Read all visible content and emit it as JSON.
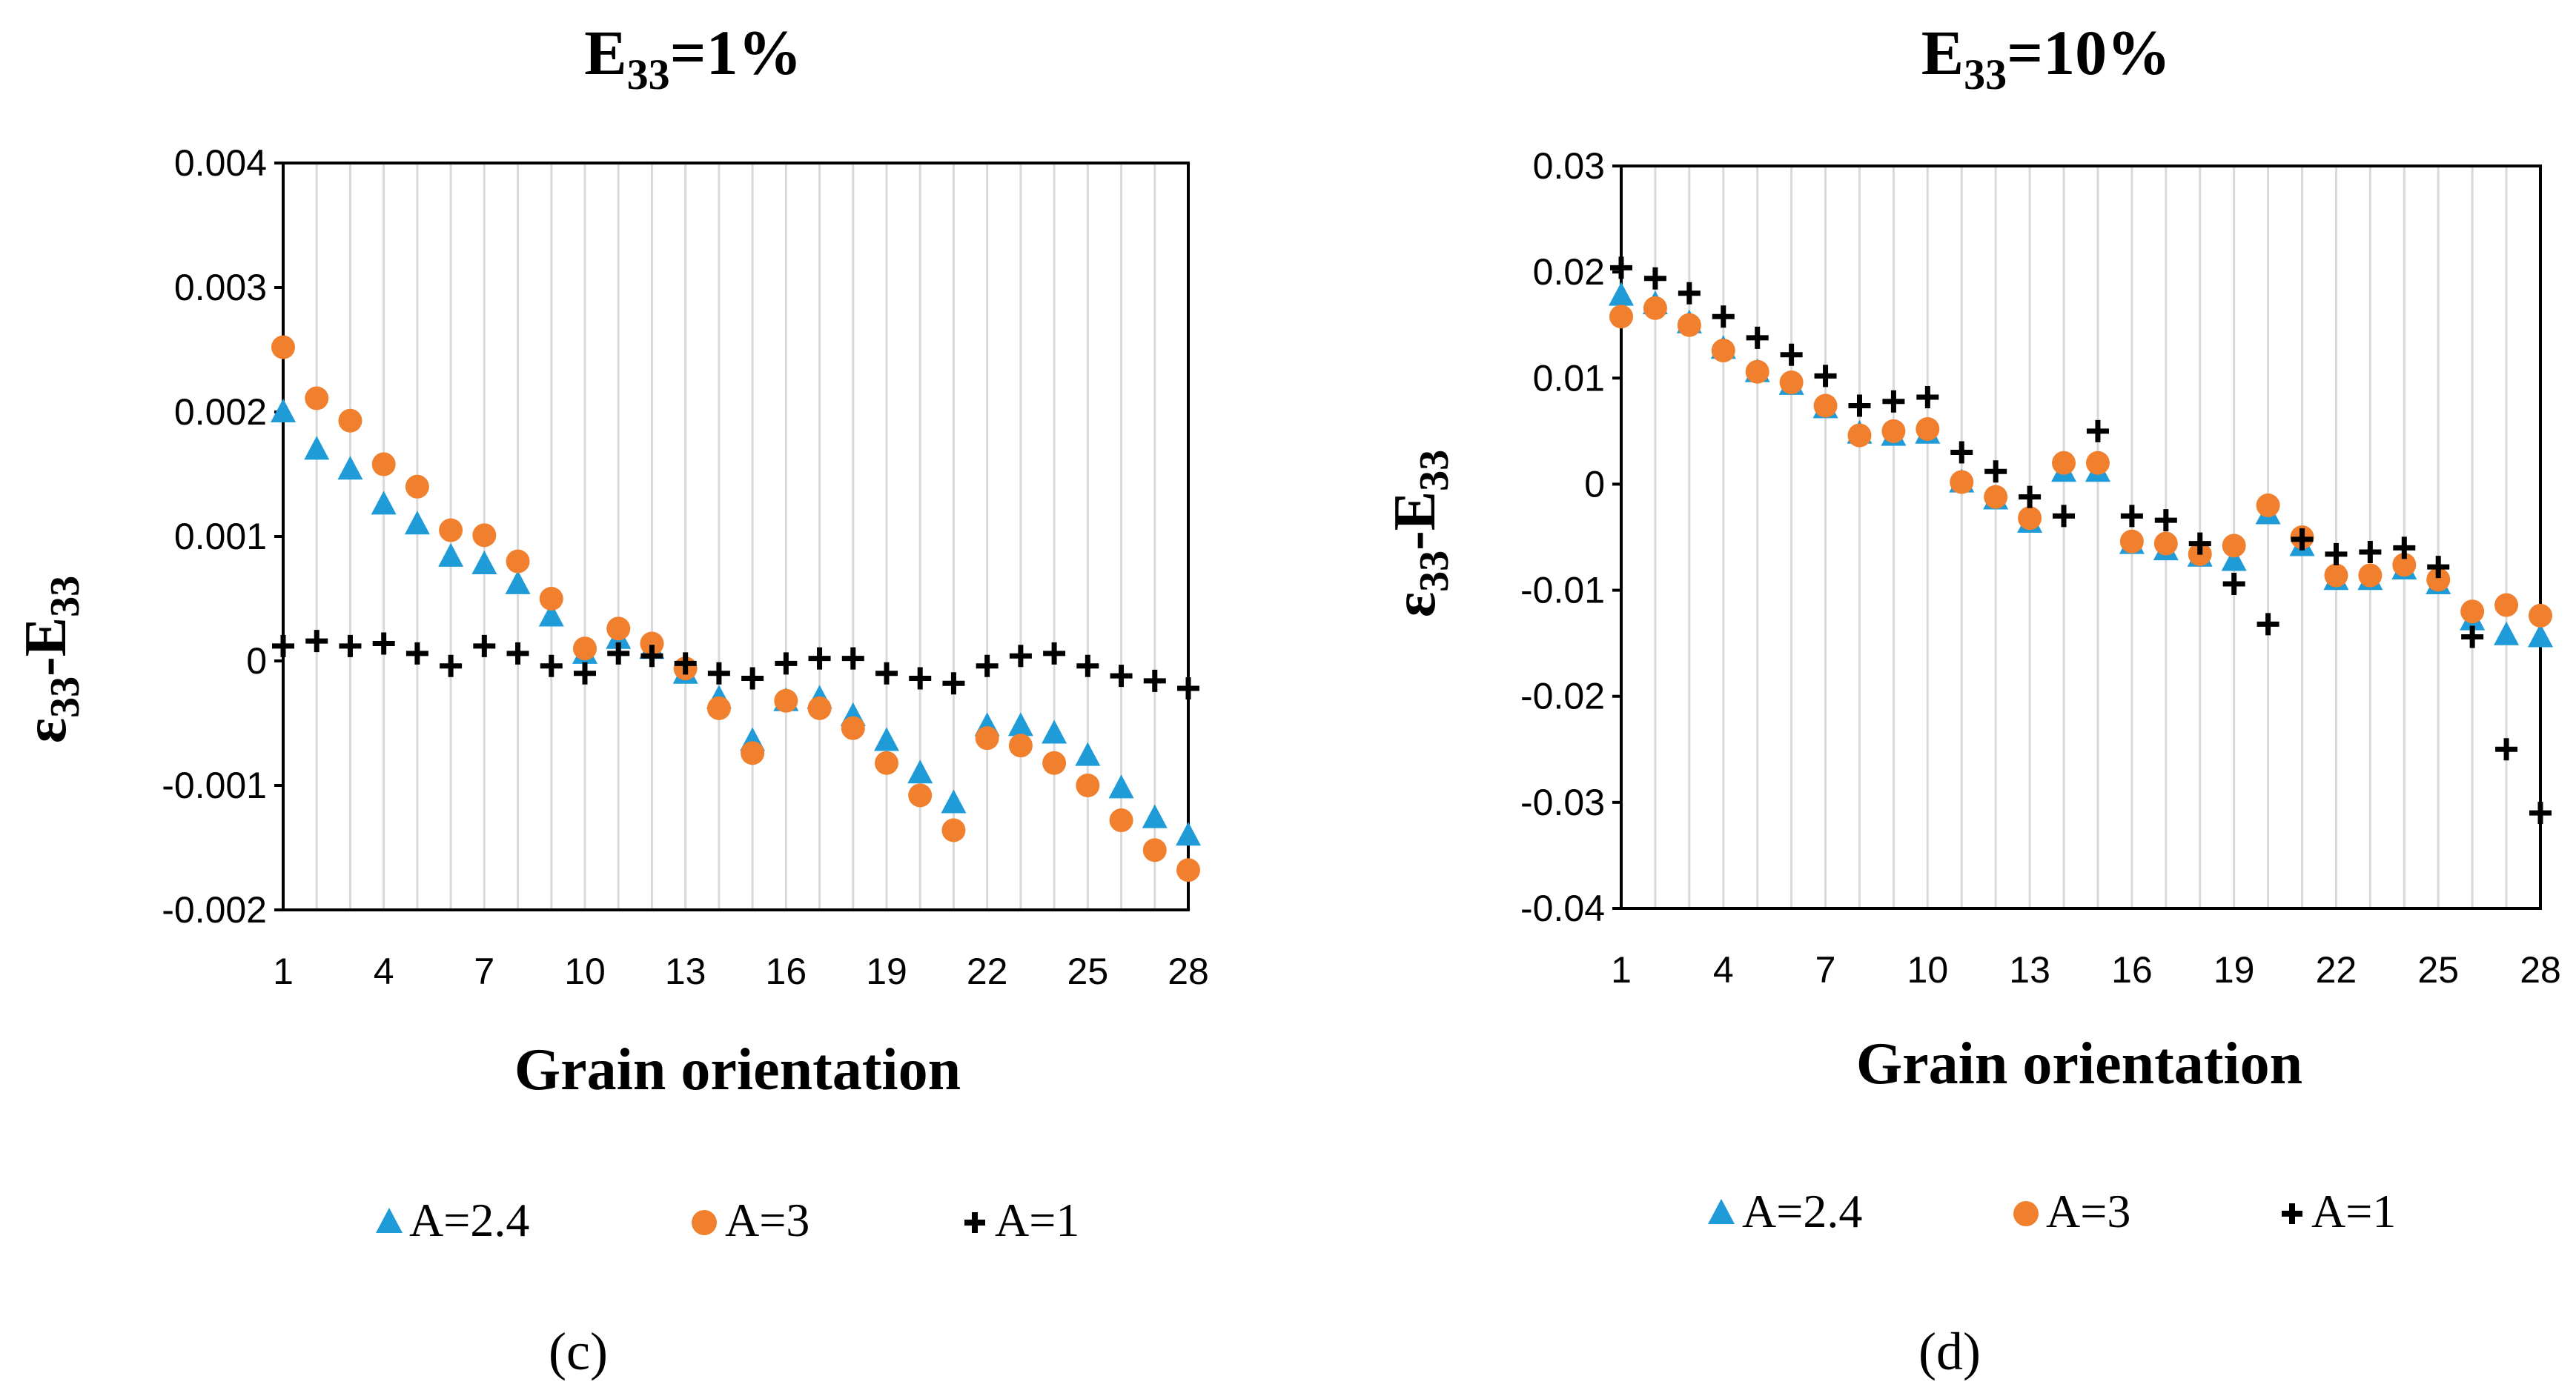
{
  "colors": {
    "a24": "#1f9bd7",
    "a3": "#f07f2e",
    "a1": "#000000",
    "grid": "#d9d9d9",
    "axis": "#000000"
  },
  "chart_data": [
    {
      "type": "scatter",
      "panel": "c",
      "title_main": "E",
      "title_sub": "33",
      "title_rest": "=1%",
      "xlabel": "Grain orientation",
      "ylabel_main": "ε",
      "ylabel_sub1": "33",
      "ylabel_mid": "-E",
      "ylabel_sub2": "33",
      "caption": "(c)",
      "xlim": [
        1,
        28
      ],
      "ylim": [
        -0.002,
        0.004
      ],
      "xticks": [
        1,
        4,
        7,
        10,
        13,
        16,
        19,
        22,
        25,
        28
      ],
      "yticks": [
        -0.002,
        -0.001,
        0,
        0.001,
        0.002,
        0.003,
        0.004
      ],
      "ytick_labels": [
        "-0.002",
        "-0.001",
        "0",
        "0.001",
        "0.002",
        "0.003",
        "0.004"
      ],
      "x": [
        1,
        2,
        3,
        4,
        5,
        6,
        7,
        8,
        9,
        10,
        11,
        12,
        13,
        14,
        15,
        16,
        17,
        18,
        19,
        20,
        21,
        22,
        23,
        24,
        25,
        26,
        27,
        28
      ],
      "series": [
        {
          "name": "A=2.4",
          "marker": "triangle",
          "color_key": "a24",
          "values": [
            0.002,
            0.0017,
            0.00154,
            0.00126,
            0.0011,
            0.00084,
            0.00078,
            0.00062,
            0.00036,
            6e-05,
            0.00018,
            0.0001,
            -0.0001,
            -0.0003,
            -0.00064,
            -0.00032,
            -0.0003,
            -0.00044,
            -0.00064,
            -0.0009,
            -0.00114,
            -0.00052,
            -0.00052,
            -0.00058,
            -0.00076,
            -0.00102,
            -0.00126,
            -0.0014
          ]
        },
        {
          "name": "A=3",
          "marker": "circle",
          "color_key": "a3",
          "values": [
            0.00252,
            0.00211,
            0.00193,
            0.00158,
            0.0014,
            0.00105,
            0.00101,
            0.0008,
            0.0005,
            0.0001,
            0.00026,
            0.00014,
            -6e-05,
            -0.00038,
            -0.00074,
            -0.00032,
            -0.00038,
            -0.00054,
            -0.00082,
            -0.00108,
            -0.00136,
            -0.00062,
            -0.00068,
            -0.00082,
            -0.001,
            -0.00128,
            -0.00152,
            -0.00168
          ]
        },
        {
          "name": "A=1",
          "marker": "plus",
          "color_key": "a1",
          "values": [
            0.00012,
            0.00016,
            0.00012,
            0.00014,
            6e-05,
            -4e-05,
            0.00012,
            6e-05,
            -4e-05,
            -0.0001,
            6e-05,
            4e-05,
            -2e-05,
            -0.0001,
            -0.00014,
            -2e-05,
            2e-05,
            2e-05,
            -0.0001,
            -0.00014,
            -0.00018,
            -4e-05,
            4e-05,
            6e-05,
            -4e-05,
            -0.00012,
            -0.00016,
            -0.00022
          ]
        }
      ],
      "legend": [
        "A=2.4",
        "A=3",
        "A=1"
      ]
    },
    {
      "type": "scatter",
      "panel": "d",
      "title_main": "E",
      "title_sub": "33",
      "title_rest": "=10%",
      "xlabel": "Grain orientation",
      "ylabel_main": "ε",
      "ylabel_sub1": "33",
      "ylabel_mid": "-E",
      "ylabel_sub2": "33",
      "caption": "(d)",
      "xlim": [
        1,
        28
      ],
      "ylim": [
        -0.04,
        0.03
      ],
      "xticks": [
        1,
        4,
        7,
        10,
        13,
        16,
        19,
        22,
        25,
        28
      ],
      "yticks": [
        -0.04,
        -0.03,
        -0.02,
        -0.01,
        0,
        0.01,
        0.02,
        0.03
      ],
      "ytick_labels": [
        "-0.04",
        "-0.03",
        "-0.02",
        "-0.01",
        "0",
        "0.01",
        "0.02",
        "0.03"
      ],
      "x": [
        1,
        2,
        3,
        4,
        5,
        6,
        7,
        8,
        9,
        10,
        11,
        12,
        13,
        14,
        15,
        16,
        17,
        18,
        19,
        20,
        21,
        22,
        23,
        24,
        25,
        26,
        27,
        28
      ],
      "series": [
        {
          "name": "A=2.4",
          "marker": "triangle",
          "color_key": "a24",
          "values": [
            0.0178,
            0.017,
            0.0152,
            0.0128,
            0.0106,
            0.0094,
            0.0072,
            0.0048,
            0.0046,
            0.0048,
            0.0002,
            -0.0014,
            -0.0036,
            0.0012,
            0.0012,
            -0.0056,
            -0.0062,
            -0.0068,
            -0.0072,
            -0.0028,
            -0.0058,
            -0.009,
            -0.009,
            -0.008,
            -0.0094,
            -0.0128,
            -0.0142,
            -0.0144
          ]
        },
        {
          "name": "A=3",
          "marker": "circle",
          "color_key": "a3",
          "values": [
            0.0158,
            0.0166,
            0.015,
            0.0126,
            0.0106,
            0.0096,
            0.0074,
            0.0046,
            0.005,
            0.0052,
            0.0002,
            -0.0012,
            -0.0032,
            0.002,
            0.002,
            -0.0054,
            -0.0056,
            -0.0066,
            -0.0058,
            -0.002,
            -0.005,
            -0.0086,
            -0.0086,
            -0.0076,
            -0.009,
            -0.012,
            -0.0114,
            -0.0124
          ]
        },
        {
          "name": "A=1",
          "marker": "plus",
          "color_key": "a1",
          "values": [
            0.0204,
            0.0194,
            0.018,
            0.0158,
            0.0138,
            0.0122,
            0.0102,
            0.0074,
            0.0078,
            0.0082,
            0.003,
            0.0012,
            -0.0012,
            -0.003,
            0.005,
            -0.003,
            -0.0034,
            -0.0056,
            -0.0094,
            -0.0132,
            -0.0052,
            -0.0066,
            -0.0064,
            -0.006,
            -0.0078,
            -0.0144,
            -0.025,
            -0.031
          ]
        }
      ],
      "legend": [
        "A=2.4",
        "A=3",
        "A=1"
      ]
    }
  ]
}
